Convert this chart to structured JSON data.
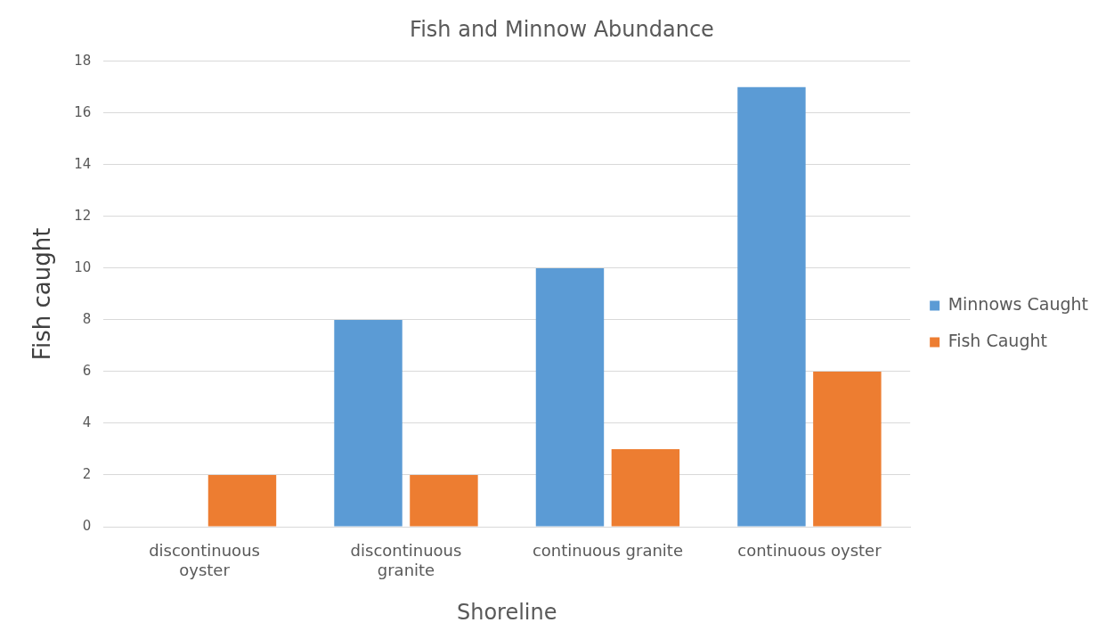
{
  "chart_data": {
    "type": "bar",
    "title": "Fish and Minnow Abundance",
    "xlabel": "Shoreline",
    "ylabel": "Fish caught",
    "categories": [
      "discontinuous oyster",
      "discontinuous granite",
      "continuous granite",
      "continuous oyster"
    ],
    "series": [
      {
        "name": "Minnows Caught",
        "color": "#5b9bd5",
        "values": [
          0,
          8,
          10,
          17
        ]
      },
      {
        "name": "Fish Caught",
        "color": "#ed7d31",
        "values": [
          2,
          2,
          3,
          6
        ]
      }
    ],
    "ylim": [
      0,
      18
    ],
    "yticks": [
      0,
      2,
      4,
      6,
      8,
      10,
      12,
      14,
      16,
      18
    ],
    "grid": "y",
    "legend": "right"
  }
}
